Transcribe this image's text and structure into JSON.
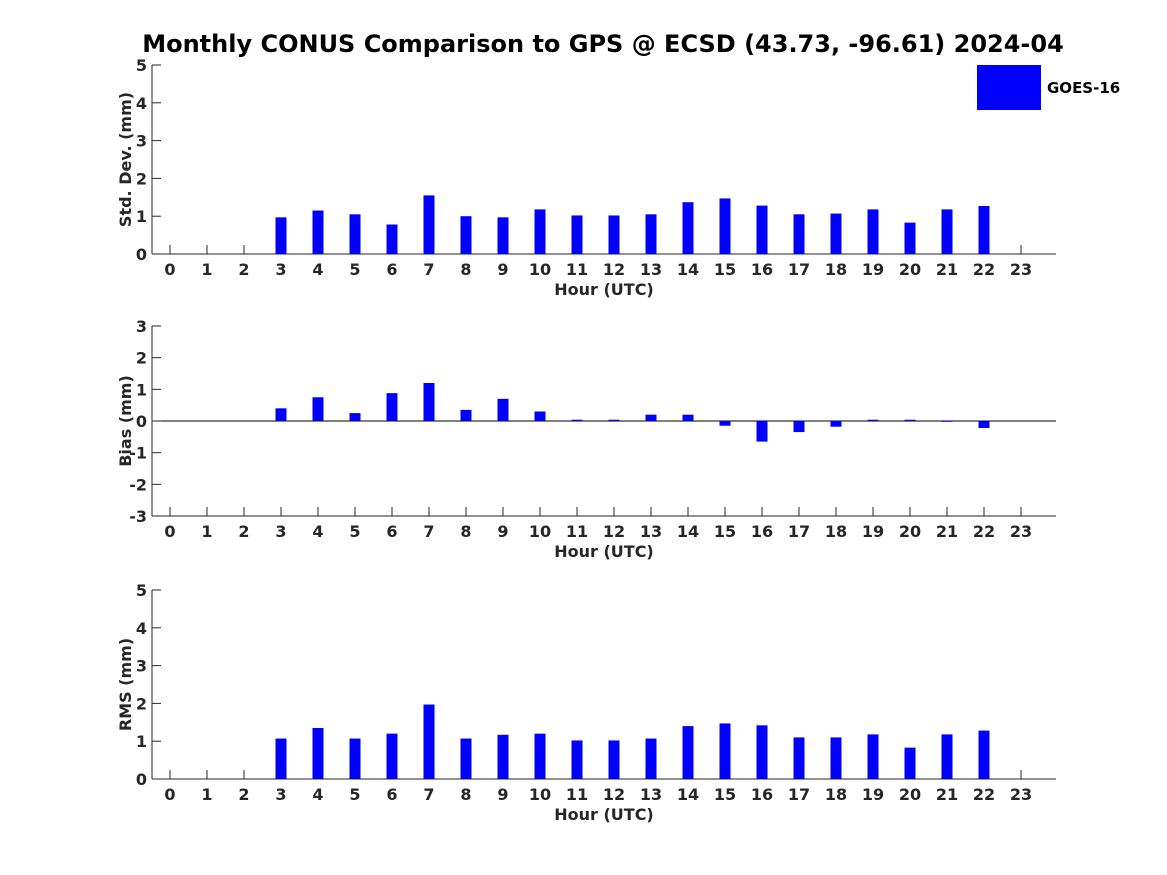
{
  "title": "Monthly CONUS Comparison to GPS @ ECSD (43.73, -96.61) 2024-04",
  "legend": {
    "label": "GOES-16"
  },
  "colors": {
    "bar": "#0000ff",
    "axis": "#262626"
  },
  "chart_data": [
    {
      "type": "bar",
      "title": "",
      "xlabel": "Hour (UTC)",
      "ylabel": "Std. Dev. (mm)",
      "ylim": [
        0,
        5
      ],
      "yticks": [
        0,
        1,
        2,
        3,
        4,
        5
      ],
      "categories": [
        "0",
        "1",
        "2",
        "3",
        "4",
        "5",
        "6",
        "7",
        "8",
        "9",
        "10",
        "11",
        "12",
        "13",
        "14",
        "15",
        "16",
        "17",
        "18",
        "19",
        "20",
        "21",
        "22",
        "23"
      ],
      "series": [
        {
          "name": "GOES-16",
          "values": [
            null,
            null,
            null,
            0.97,
            1.15,
            1.05,
            0.78,
            1.55,
            1.0,
            0.97,
            1.18,
            1.02,
            1.02,
            1.05,
            1.37,
            1.47,
            1.28,
            1.05,
            1.07,
            1.18,
            0.83,
            1.18,
            1.27,
            null
          ]
        }
      ],
      "legend": "top-right",
      "grid": false
    },
    {
      "type": "bar",
      "title": "",
      "xlabel": "Hour (UTC)",
      "ylabel": "Bias (mm)",
      "ylim": [
        -3,
        3
      ],
      "yticks": [
        -3,
        -2,
        -1,
        0,
        1,
        2,
        3
      ],
      "categories": [
        "0",
        "1",
        "2",
        "3",
        "4",
        "5",
        "6",
        "7",
        "8",
        "9",
        "10",
        "11",
        "12",
        "13",
        "14",
        "15",
        "16",
        "17",
        "18",
        "19",
        "20",
        "21",
        "22",
        "23"
      ],
      "series": [
        {
          "name": "GOES-16",
          "values": [
            null,
            null,
            null,
            0.4,
            0.75,
            0.25,
            0.88,
            1.2,
            0.35,
            0.7,
            0.3,
            0.04,
            0.04,
            0.2,
            0.2,
            -0.15,
            -0.65,
            -0.35,
            -0.18,
            0.04,
            0.04,
            0.0,
            -0.22,
            null
          ]
        }
      ],
      "grid": false
    },
    {
      "type": "bar",
      "title": "",
      "xlabel": "Hour (UTC)",
      "ylabel": "RMS (mm)",
      "ylim": [
        0,
        5
      ],
      "yticks": [
        0,
        1,
        2,
        3,
        4,
        5
      ],
      "categories": [
        "0",
        "1",
        "2",
        "3",
        "4",
        "5",
        "6",
        "7",
        "8",
        "9",
        "10",
        "11",
        "12",
        "13",
        "14",
        "15",
        "16",
        "17",
        "18",
        "19",
        "20",
        "21",
        "22",
        "23"
      ],
      "series": [
        {
          "name": "GOES-16",
          "values": [
            null,
            null,
            null,
            1.07,
            1.35,
            1.07,
            1.2,
            1.97,
            1.07,
            1.17,
            1.2,
            1.02,
            1.02,
            1.07,
            1.4,
            1.47,
            1.42,
            1.1,
            1.1,
            1.18,
            0.83,
            1.18,
            1.28,
            null
          ]
        }
      ],
      "grid": false
    }
  ]
}
